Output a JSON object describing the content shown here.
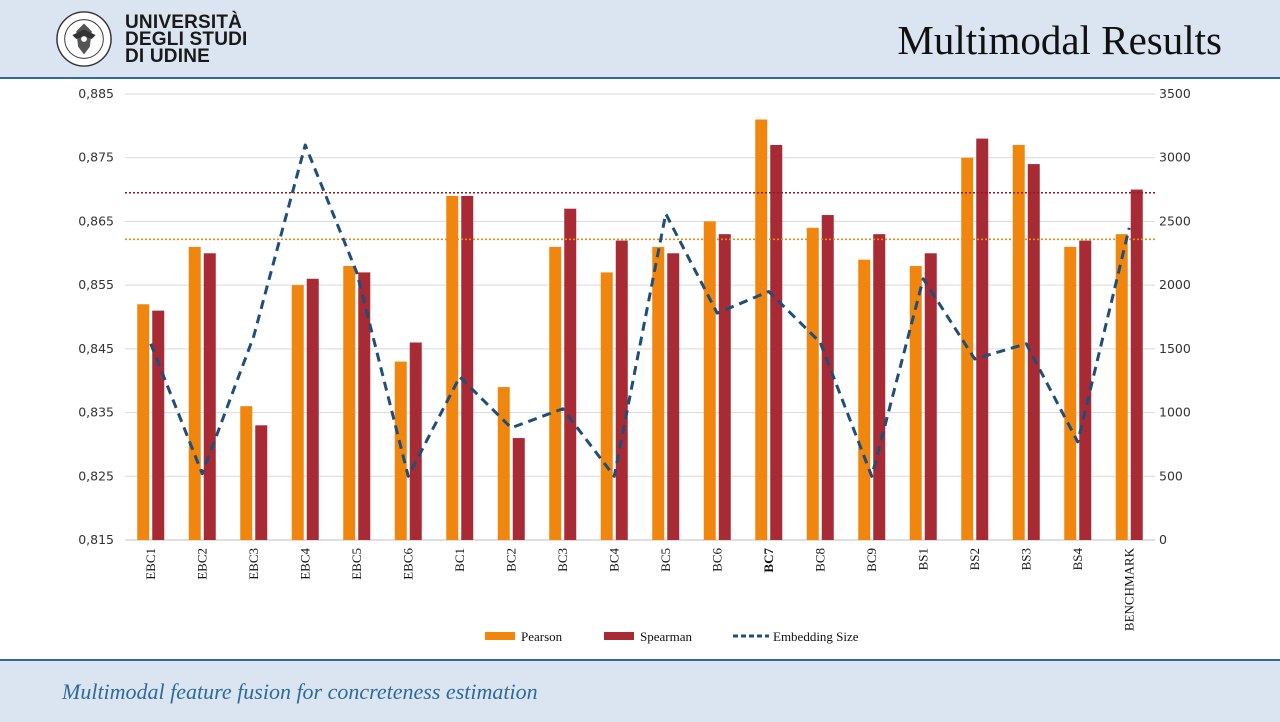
{
  "header": {
    "title": "Multimodal Results",
    "logo_lines": [
      "UNIVERSITÀ",
      "DEGLI STUDI",
      "DI UDINE"
    ],
    "seal_text": "UNIVERSITAS STUDIORUM UTINENSIS"
  },
  "footer": {
    "subtitle": "Multimodal feature fusion for concreteness estimation"
  },
  "colors": {
    "pearson": "#f0860e",
    "spearman": "#a72a35",
    "embedding": "#1f4e79",
    "ref_high": "#8b1a22",
    "ref_low": "#e08b1a",
    "header_bg": "#dbe5f1",
    "accent": "#2e6a9a"
  },
  "chart_data": {
    "type": "bar",
    "categories": [
      "EBC1",
      "EBC2",
      "EBC3",
      "EBC4",
      "EBC5",
      "EBC6",
      "BC1",
      "BC2",
      "BC3",
      "BC4",
      "BC5",
      "BC6",
      "BC7",
      "BC8",
      "BC9",
      "BS1",
      "BS2",
      "BS3",
      "BS4",
      "BENCHMARK"
    ],
    "highlight_category": "BC7",
    "series": [
      {
        "name": "Pearson",
        "kind": "bar",
        "axis": "left",
        "values": [
          0.852,
          0.861,
          0.836,
          0.855,
          0.858,
          0.843,
          0.869,
          0.839,
          0.861,
          0.857,
          0.861,
          0.865,
          0.881,
          0.864,
          0.859,
          0.858,
          0.875,
          0.877,
          0.861,
          0.863
        ]
      },
      {
        "name": "Spearman",
        "kind": "bar",
        "axis": "left",
        "values": [
          0.851,
          0.86,
          0.833,
          0.856,
          0.857,
          0.846,
          0.869,
          0.831,
          0.867,
          0.862,
          0.86,
          0.863,
          0.877,
          0.866,
          0.863,
          0.86,
          0.878,
          0.874,
          0.862,
          0.87
        ]
      },
      {
        "name": "Embedding Size",
        "kind": "line",
        "style": "dashed",
        "axis": "right",
        "values": [
          1540,
          520,
          1600,
          3100,
          2100,
          500,
          1280,
          880,
          1030,
          500,
          2560,
          1780,
          1950,
          1550,
          500,
          2050,
          1420,
          1540,
          770,
          2450
        ]
      }
    ],
    "reference_lines": [
      {
        "axis": "left",
        "value": 0.8695,
        "color_key": "ref_high"
      },
      {
        "axis": "left",
        "value": 0.8622,
        "color_key": "ref_low"
      }
    ],
    "left_axis": {
      "ylim": [
        0.815,
        0.885
      ],
      "ticks": [
        "0,885",
        "0,875",
        "0,865",
        "0,855",
        "0,845",
        "0,835",
        "0,825",
        "0,815"
      ]
    },
    "right_axis": {
      "ylim": [
        0,
        3500
      ],
      "ticks": [
        "3500",
        "3000",
        "2500",
        "2000",
        "1500",
        "1000",
        "500",
        "0"
      ]
    },
    "legend": {
      "position": "bottom",
      "entries": [
        "Pearson",
        "Spearman",
        "Embedding Size"
      ]
    },
    "grid": true
  }
}
